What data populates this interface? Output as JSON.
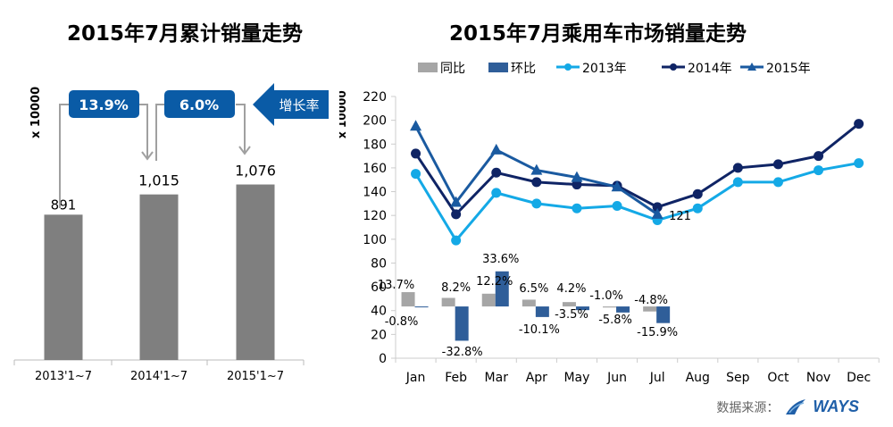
{
  "chart_data": [
    {
      "type": "bar",
      "title": "2015年7月累计销量走势",
      "ylabel": "x 10000",
      "categories": [
        "2013'1~7",
        "2014'1~7",
        "2015'1~7"
      ],
      "values": [
        891,
        1015,
        1076
      ],
      "value_labels": [
        "891",
        "1,015",
        "1,076"
      ],
      "ylim": [
        0,
        1250
      ],
      "growth_rates": [
        "13.9%",
        "6.0%"
      ],
      "growth_label": "增长率",
      "colors": {
        "bar": "#7f7f7f",
        "callout": "#0a5ba6"
      }
    },
    {
      "type": "line",
      "title": "2015年7月乘用车市场销量走势",
      "ylabel": "x 10000",
      "ylim": [
        0,
        220
      ],
      "yticks": [
        "0",
        "20",
        "40",
        "60",
        "80",
        "100",
        "120",
        "140",
        "160",
        "180",
        "200",
        "220"
      ],
      "categories": [
        "Jan",
        "Feb",
        "Mar",
        "Apr",
        "May",
        "Jun",
        "Jul",
        "Aug",
        "Sep",
        "Oct",
        "Nov",
        "Dec"
      ],
      "legend_position": "top",
      "series": [
        {
          "name": "2013年",
          "color": "#14a9e6",
          "marker": "circle",
          "values": [
            155,
            99,
            139,
            130,
            126,
            128,
            116,
            126,
            148,
            148,
            158,
            164
          ]
        },
        {
          "name": "2014年",
          "color": "#0f2465",
          "marker": "circle",
          "values": [
            172,
            121,
            156,
            148,
            146,
            145,
            127,
            138,
            160,
            163,
            170,
            197
          ]
        },
        {
          "name": "2015年",
          "color": "#1a5aa0",
          "marker": "triangle",
          "values": [
            195,
            131,
            175,
            158,
            152,
            144,
            121,
            null,
            null,
            null,
            null,
            null
          ]
        }
      ],
      "annotation": "121",
      "growth_bars": {
        "baseline": 43.5,
        "series": [
          {
            "name": "同比",
            "color": "#a6a6a6",
            "values": [
              13.7,
              8.2,
              12.2,
              6.5,
              4.2,
              -1.0,
              -4.8
            ],
            "labels": [
              "13.7%",
              "8.2%",
              "12.2%",
              "6.5%",
              "4.2%",
              "-1.0%",
              "-4.8%"
            ]
          },
          {
            "name": "环比",
            "color": "#2f5e99",
            "values": [
              -0.8,
              -32.8,
              33.6,
              -10.1,
              -3.5,
              -5.8,
              -15.9
            ],
            "labels": [
              "-0.8%",
              "-32.8%",
              "33.6%",
              "-10.1%",
              "-3.5%",
              "-5.8%",
              "-15.9%"
            ]
          }
        ]
      }
    }
  ],
  "source": {
    "label": "数据来源：",
    "brand": "WAYS"
  }
}
